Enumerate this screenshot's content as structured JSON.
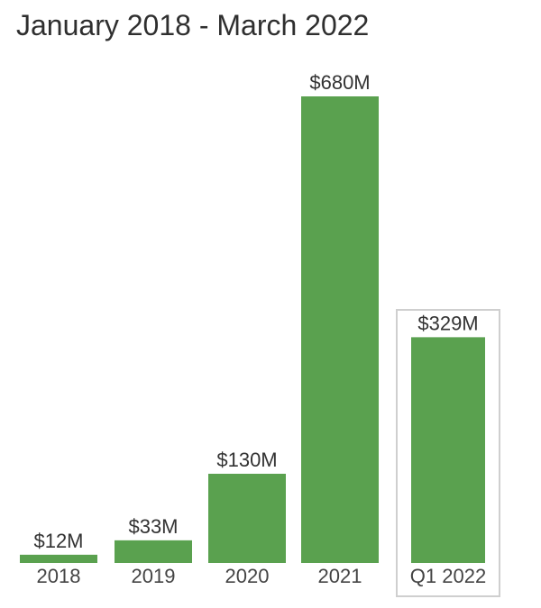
{
  "header": {
    "title": "January 2018 - March 2022"
  },
  "chart_data": {
    "type": "bar",
    "title": "January 2018 - March 2022",
    "xlabel": "",
    "ylabel": "",
    "categories": [
      "2018",
      "2019",
      "2020",
      "2021",
      "Q1 2022"
    ],
    "values": [
      12,
      33,
      130,
      680,
      329
    ],
    "value_labels": [
      "$12M",
      "$33M",
      "$130M",
      "$680M",
      "$329M"
    ],
    "ylim": [
      0,
      680
    ],
    "grid": false,
    "highlighted_category": "Q1 2022",
    "colors": {
      "bar": "#5aa14f",
      "label": "#333333",
      "tick": "#444444",
      "highlight_border": "#cfcfcf"
    }
  }
}
